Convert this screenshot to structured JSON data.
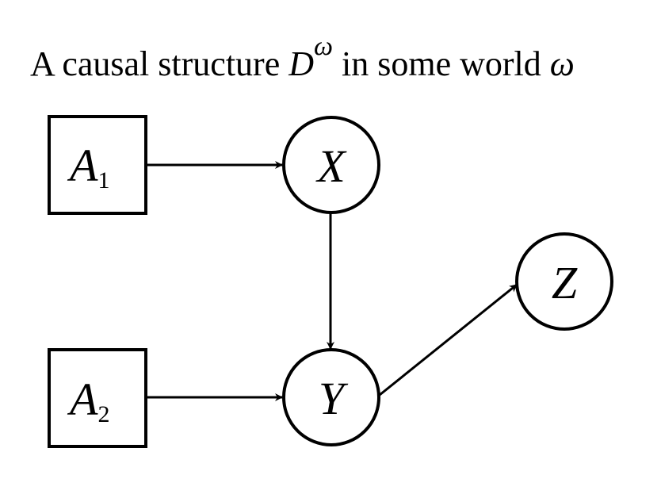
{
  "title": {
    "prefix": "A causal structure ",
    "symbol": "D",
    "superscript": "ω",
    "middle": " in some world ",
    "world": "ω"
  },
  "nodes": {
    "a1": {
      "label": "A",
      "subscript": "1"
    },
    "a2": {
      "label": "A",
      "subscript": "2"
    },
    "x": {
      "label": "X"
    },
    "y": {
      "label": "Y"
    },
    "z": {
      "label": "Z"
    }
  },
  "colors": {
    "stroke": "#000000",
    "background": "#ffffff"
  }
}
